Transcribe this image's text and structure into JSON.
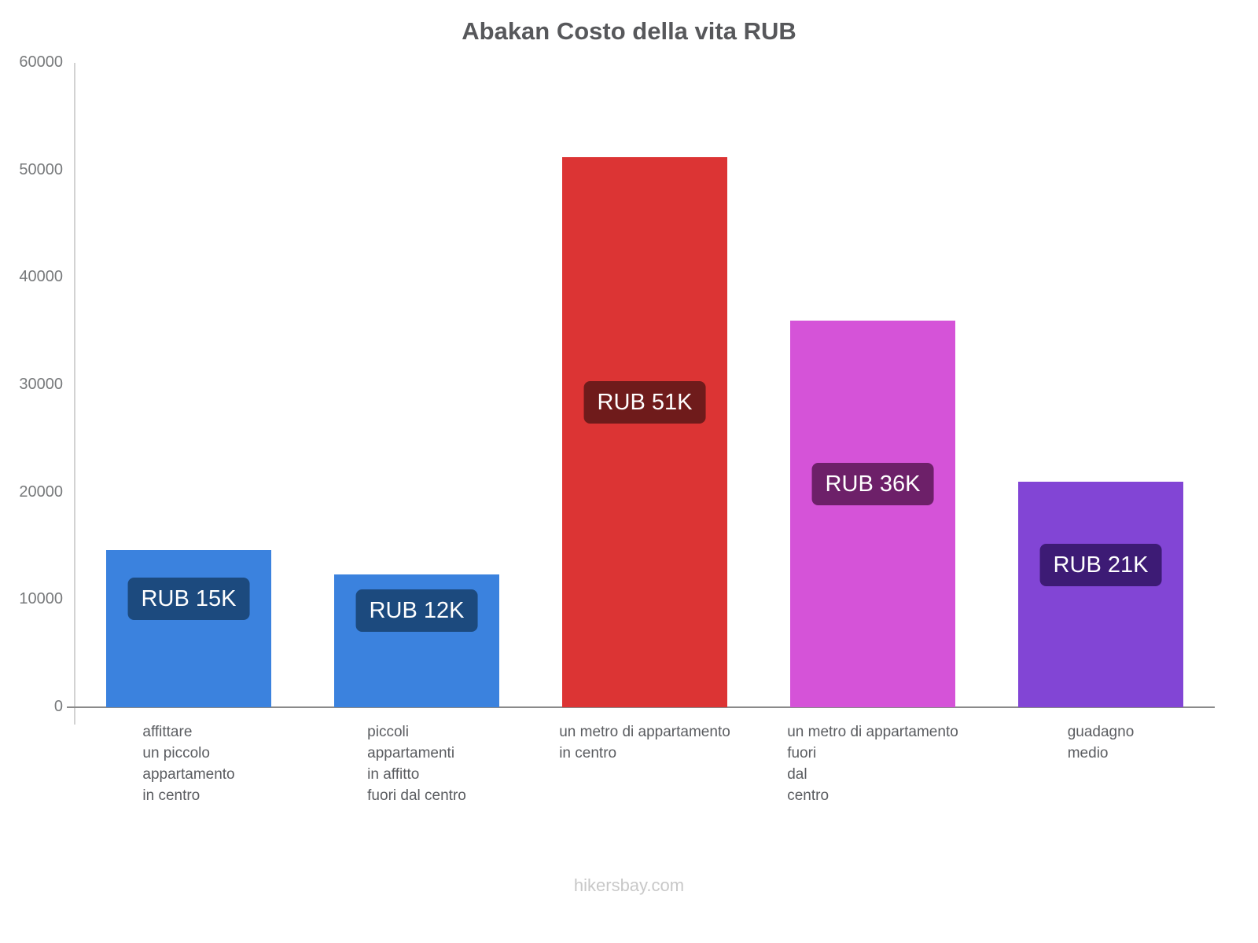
{
  "title": "Abakan Costo della vita RUB",
  "footer": "hikersbay.com",
  "chart_data": {
    "type": "bar",
    "title": "Abakan Costo della vita RUB",
    "currency": "RUB",
    "categories": [
      "affittare un piccolo appartamento in centro",
      "piccoli appartamenti in affitto fuori dal centro",
      "un metro di appartamento in centro",
      "un metro di appartamento fuori dal centro",
      "guadagno medio"
    ],
    "category_lines": [
      [
        "affittare",
        "un piccolo",
        "appartamento",
        "in centro"
      ],
      [
        "piccoli",
        "appartamenti",
        "in affitto",
        "fuori dal centro"
      ],
      [
        "un metro di appartamento",
        "in centro"
      ],
      [
        "un metro di appartamento",
        "fuori",
        "dal",
        "centro"
      ],
      [
        "guadagno",
        "medio"
      ]
    ],
    "values": [
      14600,
      12400,
      51200,
      36000,
      21000
    ],
    "value_labels": [
      "RUB 15K",
      "RUB 12K",
      "RUB 51K",
      "RUB 36K",
      "RUB 21K"
    ],
    "bar_colors": [
      "#3b82de",
      "#3b82de",
      "#dc3434",
      "#d553d8",
      "#8245d5"
    ],
    "badge_colors": [
      "#1c4a7e",
      "#1c4a7e",
      "#6f1b1b",
      "#6d2069",
      "#3d1b75"
    ],
    "xlabel": "",
    "ylabel": "",
    "ylim": [
      0,
      60000
    ],
    "yticks": [
      0,
      10000,
      20000,
      30000,
      40000,
      50000,
      60000
    ],
    "grid": false,
    "legend": false
  }
}
